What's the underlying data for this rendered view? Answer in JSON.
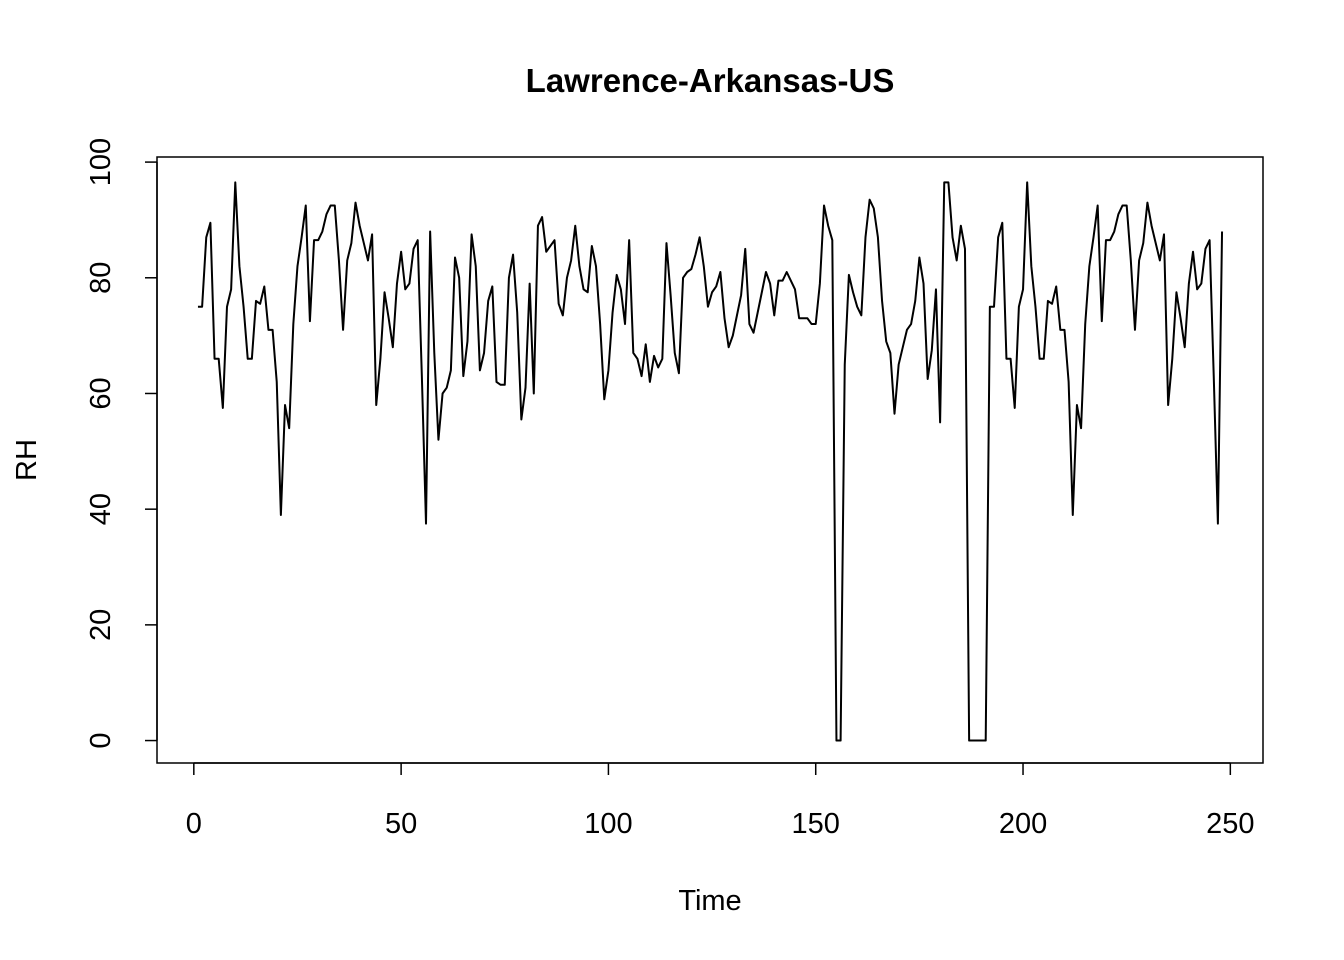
{
  "chart_data": {
    "type": "line",
    "title": "Lawrence-Arkansas-US",
    "x_label": "Time",
    "y_label": "RH",
    "x": [
      1,
      2,
      3,
      4,
      5,
      6,
      7,
      8,
      9,
      10,
      11,
      12,
      13,
      14,
      15,
      16,
      17,
      18,
      19,
      20,
      21,
      22,
      23,
      24,
      25,
      26,
      27,
      28,
      29,
      30,
      31,
      32,
      33,
      34,
      35,
      36,
      37,
      38,
      39,
      40,
      41,
      42,
      43,
      44,
      45,
      46,
      47,
      48,
      49,
      50,
      51,
      52,
      53,
      54,
      55,
      56,
      57,
      58,
      59,
      60,
      61,
      62,
      63,
      64,
      65,
      66,
      67,
      68,
      69,
      70,
      71,
      72,
      73,
      74,
      75,
      76,
      77,
      78,
      79,
      80,
      81,
      82,
      83,
      84,
      85,
      86,
      87,
      88,
      89,
      90,
      91,
      92,
      93,
      94,
      95,
      96,
      97,
      98,
      99,
      100,
      101,
      102,
      103,
      104,
      105,
      106,
      107,
      108,
      109,
      110,
      111,
      112,
      113,
      114,
      115,
      116,
      117,
      118,
      119,
      120,
      121,
      122,
      123,
      124,
      125,
      126,
      127,
      128,
      129,
      130,
      131,
      132,
      133,
      134,
      135,
      136,
      137,
      138,
      139,
      140,
      141,
      142,
      143,
      144,
      145,
      146,
      147,
      148,
      149,
      150,
      151,
      152,
      153,
      154,
      155,
      156,
      157,
      158,
      159,
      160,
      161,
      162,
      163,
      164,
      165,
      166,
      167,
      168,
      169,
      170,
      171,
      172,
      173,
      174,
      175,
      176,
      177,
      178,
      179,
      180,
      181,
      182,
      183,
      184,
      185,
      186,
      187,
      188,
      189,
      190,
      191,
      192,
      193,
      194,
      195,
      196,
      197,
      198,
      199,
      200,
      201,
      202,
      203,
      204,
      205,
      206,
      207,
      208,
      209,
      210,
      211,
      212,
      213,
      214,
      215,
      216,
      217,
      218,
      219,
      220,
      221,
      222,
      223,
      224,
      225,
      226,
      227,
      228,
      229,
      230,
      231,
      232,
      233,
      234,
      235,
      236,
      237,
      238,
      239,
      240,
      241,
      242,
      243,
      244,
      245,
      246,
      247,
      248
    ],
    "series": [
      {
        "name": "RH",
        "color": "#000000",
        "values": [
          75,
          75,
          87,
          89.5,
          66,
          66,
          57.5,
          75,
          78,
          96.5,
          82,
          75,
          66,
          66,
          76,
          75.5,
          78.5,
          71,
          71,
          62,
          39,
          58,
          54,
          72,
          82,
          87,
          92.5,
          72.5,
          86.5,
          86.5,
          88,
          91,
          92.5,
          92.5,
          83,
          71,
          83,
          86,
          93,
          89,
          86,
          83,
          87.5,
          58,
          66,
          77.5,
          73,
          68,
          79,
          84.5,
          78,
          79,
          85,
          86.5,
          63,
          37.5,
          88,
          67,
          52,
          60,
          61,
          64,
          83.5,
          80,
          63,
          69,
          87.5,
          82,
          64,
          67,
          76,
          78.5,
          62,
          61.5,
          61.5,
          80,
          84,
          74,
          55.5,
          61,
          79,
          60,
          89,
          90.5,
          84.5,
          85.5,
          86.5,
          75.5,
          73.5,
          80,
          83,
          89,
          82,
          78,
          77.5,
          85.5,
          82,
          72,
          59,
          64,
          74,
          80.5,
          78,
          72,
          86.5,
          67,
          66,
          63,
          68.5,
          62,
          66.5,
          64.5,
          66,
          86,
          77,
          67,
          63.5,
          80,
          81,
          81.5,
          84,
          87,
          82,
          75,
          77.5,
          78.5,
          81,
          73,
          68,
          70,
          73.5,
          77,
          85,
          72,
          70.5,
          74,
          77.5,
          81,
          79,
          73.5,
          79.5,
          79.5,
          81,
          79.5,
          78,
          73,
          73,
          73,
          72,
          72,
          79,
          92.5,
          89,
          86.5,
          0,
          0,
          65,
          80.5,
          77.5,
          75,
          73.5,
          87,
          93.5,
          92,
          87,
          76,
          69,
          67,
          56.5,
          65,
          68,
          71,
          72,
          76,
          83.5,
          79,
          62.5,
          67.5,
          78,
          55,
          96.5,
          96.5,
          87,
          83,
          89,
          85,
          0,
          0,
          0,
          0,
          0,
          75,
          75,
          87,
          89.5,
          66,
          66,
          57.5,
          75,
          78,
          96.5,
          82,
          75,
          66,
          66,
          76,
          75.5,
          78.5,
          71,
          71,
          62,
          39,
          58,
          54,
          72,
          82,
          87,
          92.5,
          72.5,
          86.5,
          86.5,
          88,
          91,
          92.5,
          92.5,
          83,
          71,
          83,
          86,
          93,
          89,
          86,
          83,
          87.5,
          58,
          66,
          77.5,
          73,
          68,
          79,
          84.5,
          78,
          79,
          85,
          86.5,
          63,
          37.5,
          88
        ]
      }
    ],
    "xlim": [
      -8.88,
      257.88
    ],
    "ylim": [
      -3.88,
      100.88
    ],
    "xticks": [
      0,
      50,
      100,
      150,
      200,
      250
    ],
    "yticks": [
      0,
      20,
      40,
      60,
      80,
      100
    ]
  }
}
